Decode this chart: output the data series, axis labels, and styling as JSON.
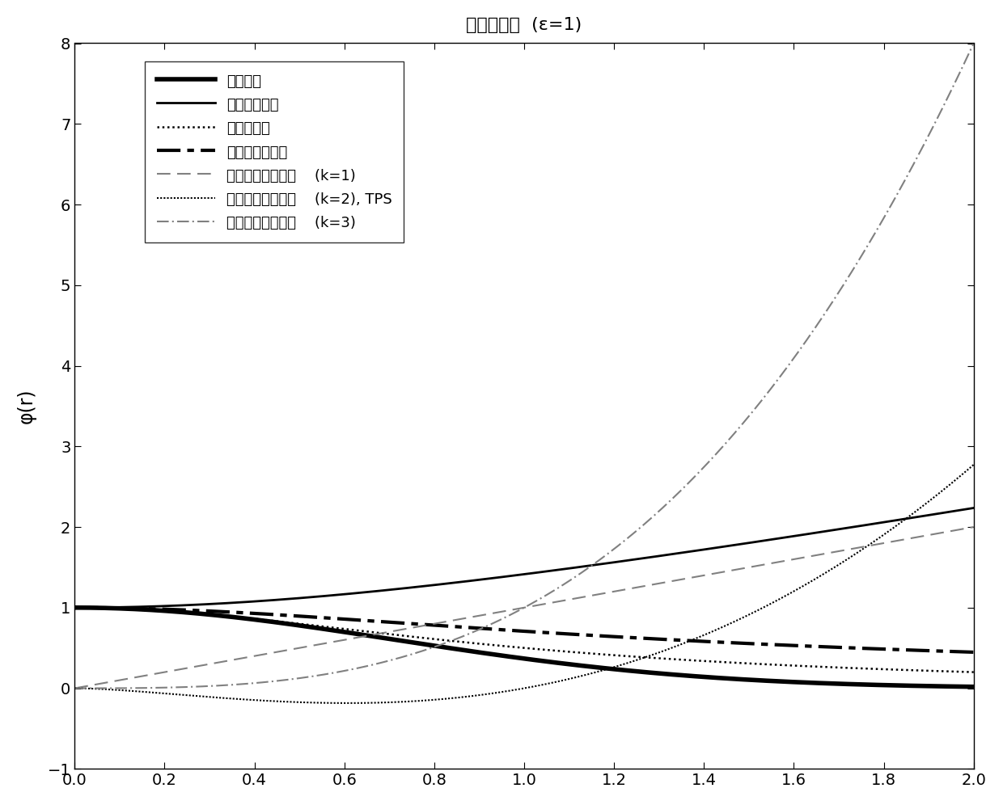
{
  "title": "径向基函数  (ε=1)",
  "xlabel": "",
  "ylabel": "φ(r)",
  "xlim": [
    0,
    2
  ],
  "ylim": [
    -1,
    8
  ],
  "xticks": [
    0,
    0.2,
    0.4,
    0.6,
    0.8,
    1.0,
    1.2,
    1.4,
    1.6,
    1.8,
    2.0
  ],
  "yticks": [
    -1,
    0,
    1,
    2,
    3,
    4,
    5,
    6,
    7,
    8
  ],
  "epsilon": 1.0,
  "legend_entries": [
    "高斯函数",
    "多元二次函数",
    "逆二次函数",
    "逆多元二次函数",
    "多重调和样条函数    (k=1)",
    "多重调和样条函数    (k=2), TPS",
    "多重调和样条函数    (k=3)"
  ],
  "background": "white"
}
